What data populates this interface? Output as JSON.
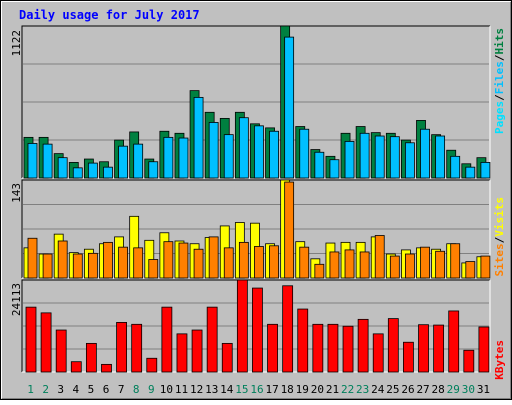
{
  "title": "Daily usage for July 2017",
  "colors": {
    "background": "#c0c0c0",
    "title": "#0000ff",
    "hits": "#008040",
    "files": "#00c0ff",
    "pages": "#00e0ff",
    "sites": "#ff8000",
    "visits": "#ffff00",
    "kbytes": "#ff0000",
    "day_weekday": "#000000",
    "day_weekend": "#00805c"
  },
  "chart_data": [
    {
      "type": "bar",
      "panel": "top",
      "max_label": "1122",
      "ylim": [
        0,
        1122
      ],
      "legend": [
        "Pages",
        "/",
        "Files",
        "/",
        "Hits"
      ],
      "categories": [
        "1",
        "2",
        "3",
        "4",
        "5",
        "6",
        "7",
        "8",
        "9",
        "10",
        "11",
        "12",
        "13",
        "14",
        "15",
        "16",
        "17",
        "18",
        "19",
        "20",
        "21",
        "22",
        "23",
        "24",
        "25",
        "26",
        "27",
        "28",
        "29",
        "30",
        "31"
      ],
      "weekend_days": [
        "1",
        "2",
        "8",
        "9",
        "15",
        "16",
        "22",
        "23",
        "29",
        "30"
      ],
      "series": [
        {
          "name": "Hits",
          "values": [
            300,
            300,
            180,
            115,
            140,
            120,
            280,
            340,
            140,
            345,
            330,
            645,
            485,
            440,
            485,
            400,
            370,
            1122,
            380,
            210,
            160,
            330,
            380,
            335,
            330,
            280,
            425,
            320,
            205,
            105,
            150
          ]
        },
        {
          "name": "Files",
          "values": [
            255,
            250,
            150,
            75,
            110,
            80,
            235,
            250,
            120,
            300,
            295,
            595,
            410,
            320,
            445,
            385,
            345,
            1040,
            360,
            190,
            135,
            270,
            330,
            310,
            305,
            260,
            360,
            310,
            160,
            80,
            115
          ]
        },
        {
          "name": "Pages",
          "values": [
            0,
            0,
            0,
            0,
            0,
            0,
            0,
            0,
            0,
            0,
            0,
            0,
            0,
            0,
            0,
            0,
            0,
            0,
            0,
            0,
            0,
            0,
            0,
            0,
            0,
            0,
            0,
            0,
            0,
            0,
            0
          ]
        }
      ]
    },
    {
      "type": "bar",
      "panel": "middle",
      "max_label": "143",
      "ylim": [
        0,
        143
      ],
      "legend": [
        "Sites",
        "/",
        "Visits"
      ],
      "categories": [
        "1",
        "2",
        "3",
        "4",
        "5",
        "6",
        "7",
        "8",
        "9",
        "10",
        "11",
        "12",
        "13",
        "14",
        "15",
        "16",
        "17",
        "18",
        "19",
        "20",
        "21",
        "22",
        "23",
        "24",
        "25",
        "26",
        "27",
        "28",
        "29",
        "30",
        "31"
      ],
      "series": [
        {
          "name": "Visits",
          "values": [
            44,
            35,
            64,
            37,
            42,
            50,
            60,
            90,
            55,
            66,
            54,
            50,
            59,
            76,
            81,
            80,
            50,
            143,
            53,
            28,
            51,
            52,
            52,
            60,
            35,
            41,
            44,
            42,
            50,
            22,
            31
          ]
        },
        {
          "name": "Sites",
          "values": [
            58,
            35,
            54,
            35,
            36,
            52,
            45,
            44,
            27,
            53,
            51,
            42,
            60,
            44,
            52,
            46,
            47,
            140,
            45,
            20,
            38,
            41,
            38,
            62,
            32,
            35,
            45,
            39,
            50,
            24,
            32
          ]
        }
      ]
    },
    {
      "type": "bar",
      "panel": "bottom",
      "max_label": "24113",
      "ylim": [
        0,
        24113
      ],
      "legend": [
        "KBytes"
      ],
      "categories": [
        "1",
        "2",
        "3",
        "4",
        "5",
        "6",
        "7",
        "8",
        "9",
        "10",
        "11",
        "12",
        "13",
        "14",
        "15",
        "16",
        "17",
        "18",
        "19",
        "20",
        "21",
        "22",
        "23",
        "24",
        "25",
        "26",
        "27",
        "28",
        "29",
        "30",
        "31"
      ],
      "series": [
        {
          "name": "KBytes",
          "values": [
            17000,
            15500,
            11000,
            2700,
            7500,
            2000,
            13000,
            12500,
            3600,
            17000,
            10000,
            11000,
            17000,
            7500,
            24113,
            22000,
            12500,
            22600,
            16500,
            12500,
            12500,
            12000,
            13800,
            10000,
            14000,
            7800,
            12400,
            12300,
            16000,
            5700,
            11800
          ]
        }
      ]
    }
  ]
}
